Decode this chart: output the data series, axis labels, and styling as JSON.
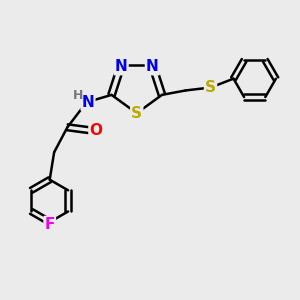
{
  "bg_color": "#ebebeb",
  "bond_color": "#000000",
  "bond_width": 1.8,
  "atom_colors": {
    "N": "#0000ee",
    "S": "#bbaa00",
    "O": "#ff0000",
    "F": "#ee00ee",
    "H": "#777777",
    "C": "#000000"
  },
  "font_size": 10,
  "figsize": [
    3.0,
    3.0
  ],
  "dpi": 100,
  "xlim": [
    0,
    10
  ],
  "ylim": [
    0,
    10
  ]
}
